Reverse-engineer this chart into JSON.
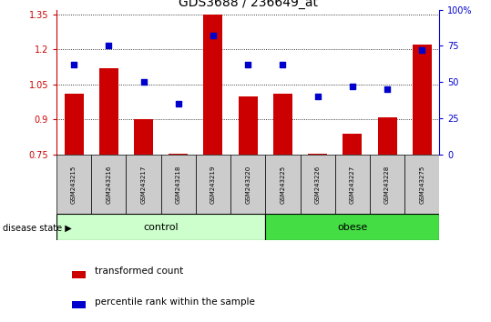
{
  "title": "GDS3688 / 236649_at",
  "samples": [
    "GSM243215",
    "GSM243216",
    "GSM243217",
    "GSM243218",
    "GSM243219",
    "GSM243220",
    "GSM243225",
    "GSM243226",
    "GSM243227",
    "GSM243228",
    "GSM243275"
  ],
  "red_values": [
    1.01,
    1.12,
    0.9,
    0.755,
    1.35,
    1.0,
    1.01,
    0.755,
    0.84,
    0.91,
    1.22
  ],
  "blue_values": [
    62,
    75,
    50,
    35,
    82,
    62,
    62,
    40,
    47,
    45,
    72
  ],
  "bar_baseline": 0.75,
  "ylim": [
    0.75,
    1.37
  ],
  "yticks": [
    0.75,
    0.9,
    1.05,
    1.2,
    1.35
  ],
  "right_yticks": [
    0,
    25,
    50,
    75,
    100
  ],
  "right_ylim": [
    0,
    100
  ],
  "bar_color": "#cc0000",
  "dot_color": "#0000cc",
  "control_color": "#ccffcc",
  "obese_color": "#44dd44",
  "control_samples": 6,
  "obese_samples": 5,
  "legend_red": "transformed count",
  "legend_blue": "percentile rank within the sample",
  "label_disease": "disease state",
  "label_control": "control",
  "label_obese": "obese",
  "title_fontsize": 10,
  "tick_fontsize": 7,
  "label_fontsize": 8,
  "sample_label_fontsize": 5,
  "group_label_fontsize": 8
}
